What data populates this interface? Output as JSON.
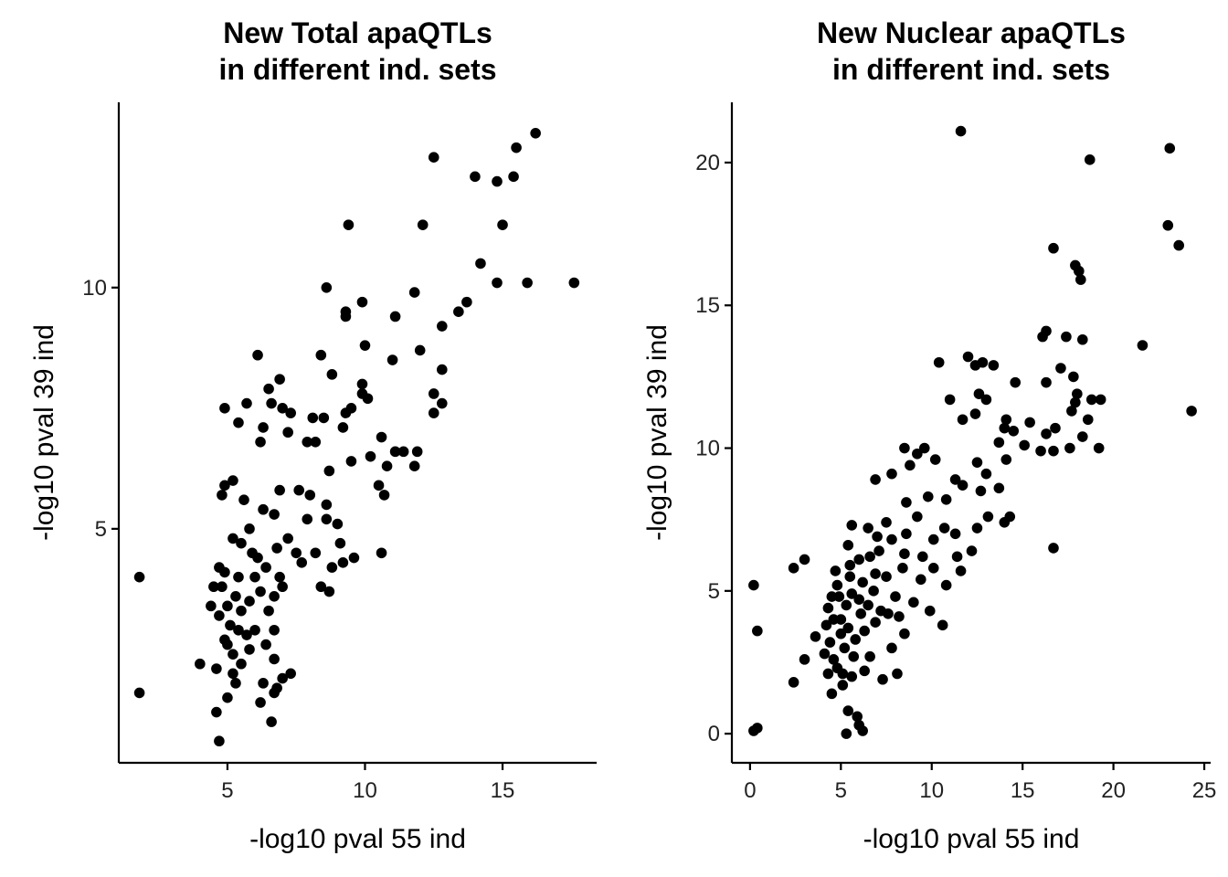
{
  "chart_data": [
    {
      "type": "scatter",
      "title": [
        "New Total apaQTLs",
        "in different ind. sets"
      ],
      "xlabel": "-log10 pval 55 ind",
      "ylabel": "-log10 pval 39 ind",
      "color": "#000000",
      "xlim": [
        1.05,
        18.42
      ],
      "ylim": [
        0.15,
        13.84
      ],
      "xticks": [
        5,
        10,
        15
      ],
      "yticks": [
        5,
        10
      ],
      "x": [
        1.8,
        1.8,
        4.0,
        4.6,
        4.7,
        5.0,
        5.3,
        5.0,
        4.8,
        12.5,
        14.0,
        14.8,
        15.5,
        16.2,
        15.4,
        9.4,
        12.1,
        15.0,
        14.2,
        14.8,
        15.9,
        17.6,
        8.6,
        11.8,
        9.9,
        9.3,
        9.3,
        11.1,
        13.7,
        13.4,
        12.8,
        6.1,
        8.4,
        11.0,
        12.0,
        10.0,
        8.8,
        9.9,
        6.9,
        6.5,
        9.9,
        10.1,
        12.8,
        12.5,
        12.8,
        12.5,
        4.9,
        5.7,
        6.6,
        7.0,
        7.3,
        8.1,
        8.5,
        9.3,
        9.5,
        9.2,
        10.6,
        7.2,
        6.3,
        5.4,
        10.2,
        11.1,
        11.4,
        11.9,
        11.8,
        10.8,
        10.5,
        10.7,
        9.5,
        8.7,
        7.9,
        8.2,
        6.2,
        5.2,
        4.9,
        4.8,
        5.6,
        6.9,
        7.6,
        8.0,
        8.6,
        9.0,
        8.6,
        7.9,
        6.7,
        6.3,
        5.8,
        5.2,
        5.5,
        5.9,
        6.1,
        6.8,
        7.2,
        7.5,
        7.7,
        8.2,
        8.8,
        9.1,
        9.6,
        10.6,
        9.2,
        8.4,
        8.7,
        6.9,
        6.4,
        6.0,
        5.4,
        4.9,
        4.7,
        4.5,
        4.4,
        4.7,
        5.0,
        5.3,
        5.5,
        5.8,
        6.2,
        6.5,
        6.7,
        7.0,
        5.1,
        5.4,
        5.7,
        6.0,
        6.7,
        4.9,
        5.2,
        5.5,
        6.7,
        7.3,
        7.0,
        6.3,
        6.7,
        5.2,
        5.8,
        6.4,
        4.6,
        6.2,
        6.6,
        6.8
      ],
      "values": [
        4.0,
        1.6,
        2.2,
        1.2,
        0.6,
        1.5,
        1.8,
        2.6,
        3.8,
        12.7,
        12.3,
        12.2,
        12.9,
        13.2,
        12.3,
        11.3,
        11.3,
        11.3,
        10.5,
        10.1,
        10.1,
        10.1,
        10.0,
        9.9,
        9.7,
        9.5,
        9.4,
        9.4,
        9.7,
        9.5,
        9.2,
        8.6,
        8.6,
        8.5,
        8.7,
        8.8,
        8.2,
        8.0,
        8.1,
        7.9,
        7.8,
        7.7,
        8.3,
        7.8,
        7.6,
        7.4,
        7.5,
        7.6,
        7.6,
        7.5,
        7.4,
        7.3,
        7.3,
        7.4,
        7.5,
        7.1,
        6.9,
        7.0,
        7.1,
        7.2,
        6.5,
        6.6,
        6.6,
        6.6,
        6.3,
        6.3,
        5.9,
        5.7,
        6.4,
        6.2,
        6.8,
        6.8,
        6.8,
        6.0,
        5.9,
        5.7,
        5.6,
        5.8,
        5.8,
        5.7,
        5.5,
        5.1,
        5.2,
        5.2,
        5.3,
        5.4,
        5.0,
        4.8,
        4.7,
        4.5,
        4.4,
        4.6,
        4.8,
        4.5,
        4.3,
        4.5,
        4.2,
        4.7,
        4.4,
        4.5,
        4.3,
        3.8,
        3.7,
        4.0,
        4.2,
        4.0,
        4.0,
        4.1,
        4.2,
        3.8,
        3.4,
        3.2,
        3.4,
        3.6,
        3.3,
        3.5,
        3.7,
        3.3,
        3.6,
        3.8,
        3.0,
        2.9,
        2.8,
        2.9,
        2.9,
        2.7,
        2.4,
        2.2,
        2.3,
        2.0,
        1.9,
        1.8,
        1.6,
        2.0,
        2.5,
        2.6,
        2.1,
        1.4,
        1.0,
        1.7
      ]
    },
    {
      "type": "scatter",
      "title": [
        "New Nuclear apaQTLs",
        "in different ind. sets"
      ],
      "xlabel": "-log10 pval 55 ind",
      "ylabel": "-log10 pval 39 ind",
      "color": "#000000",
      "xlim": [
        -1.0,
        25.35
      ],
      "ylim": [
        -1.02,
        22.11
      ],
      "xticks": [
        0,
        5,
        10,
        15,
        20,
        25
      ],
      "yticks": [
        0,
        5,
        10,
        15,
        20
      ],
      "x": [
        0.2,
        0.4,
        0.2,
        0.4,
        2.4,
        3.0,
        2.4,
        3.0,
        3.6,
        4.5,
        5.4,
        5.9,
        5.3,
        6.2,
        6.0,
        11.6,
        18.7,
        23.1,
        23.0,
        23.6,
        16.7,
        17.9,
        18.1,
        18.2,
        16.1,
        16.3,
        17.4,
        18.3,
        21.6,
        24.3,
        12.0,
        12.4,
        12.8,
        13.4,
        14.6,
        17.1,
        16.3,
        17.8,
        18.0,
        17.9,
        18.8,
        19.3,
        18.6,
        17.7,
        16.8,
        16.3,
        15.4,
        16.0,
        16.7,
        17.6,
        18.3,
        19.2,
        10.4,
        11.0,
        11.7,
        12.4,
        12.6,
        13.0,
        14.1,
        14.0,
        14.5,
        13.7,
        15.1,
        14.1,
        13.0,
        12.5,
        11.3,
        11.7,
        10.2,
        9.6,
        9.2,
        8.5,
        8.8,
        7.8,
        6.9,
        8.6,
        9.8,
        10.8,
        12.7,
        13.7,
        13.1,
        14.3,
        14.0,
        12.5,
        11.3,
        10.7,
        10.1,
        9.2,
        8.6,
        7.5,
        6.5,
        5.6,
        5.4,
        6.0,
        7.1,
        7.8,
        8.5,
        9.5,
        10.1,
        11.4,
        11.6,
        12.2,
        10.8,
        9.4,
        8.4,
        7.5,
        6.9,
        6.2,
        5.5,
        4.8,
        4.5,
        4.3,
        4.6,
        4.2,
        4.4,
        4.1,
        4.6,
        4.8,
        5.1,
        5.6,
        6.3,
        7.3,
        8.1,
        6.6,
        7.8,
        8.5,
        10.6,
        9.9,
        9.0,
        8.0,
        7.2,
        6.5,
        6.0,
        5.3,
        5.0,
        5.4,
        5.8,
        6.3,
        6.9,
        5.2,
        5.7,
        5.0,
        4.9,
        5.6,
        6.1,
        6.8,
        7.6,
        8.2,
        16.7,
        5.1,
        4.3,
        5.5,
        4.7,
        6.6,
        7.0
      ],
      "values": [
        5.2,
        3.6,
        0.1,
        0.2,
        5.8,
        6.1,
        1.8,
        2.6,
        3.4,
        1.4,
        0.8,
        0.6,
        0.0,
        0.1,
        0.3,
        21.1,
        20.1,
        20.5,
        17.8,
        17.1,
        17.0,
        16.4,
        16.2,
        15.9,
        13.9,
        14.1,
        13.9,
        13.8,
        13.6,
        11.3,
        13.2,
        12.9,
        13.0,
        12.9,
        12.3,
        12.8,
        12.3,
        12.5,
        11.9,
        11.6,
        11.7,
        11.7,
        11.0,
        11.3,
        10.7,
        10.5,
        10.9,
        9.9,
        9.9,
        10.0,
        10.4,
        10.0,
        13.0,
        11.7,
        11.0,
        11.2,
        11.9,
        11.7,
        11.0,
        10.7,
        10.6,
        10.2,
        10.1,
        9.6,
        9.1,
        9.5,
        8.9,
        8.7,
        9.6,
        10.0,
        9.8,
        10.0,
        9.4,
        9.1,
        8.9,
        8.1,
        8.3,
        8.2,
        8.5,
        8.6,
        7.6,
        7.6,
        7.4,
        7.2,
        7.0,
        7.2,
        6.8,
        7.6,
        7.0,
        7.4,
        7.2,
        7.3,
        6.6,
        6.1,
        6.4,
        6.8,
        6.3,
        6.2,
        5.8,
        6.2,
        5.7,
        6.4,
        5.2,
        5.4,
        5.8,
        5.5,
        5.6,
        5.3,
        5.5,
        5.2,
        4.8,
        4.4,
        4.0,
        3.8,
        3.2,
        2.8,
        2.6,
        2.3,
        2.1,
        2.0,
        2.2,
        1.9,
        2.1,
        2.7,
        3.0,
        3.5,
        3.8,
        4.3,
        4.6,
        4.8,
        4.3,
        4.5,
        4.7,
        4.5,
        4.0,
        3.7,
        3.3,
        3.6,
        3.9,
        3.0,
        2.7,
        3.5,
        4.8,
        4.9,
        4.2,
        5.0,
        4.2,
        4.1,
        6.5,
        1.7,
        2.1,
        5.9,
        5.7,
        6.2,
        6.9
      ]
    }
  ]
}
